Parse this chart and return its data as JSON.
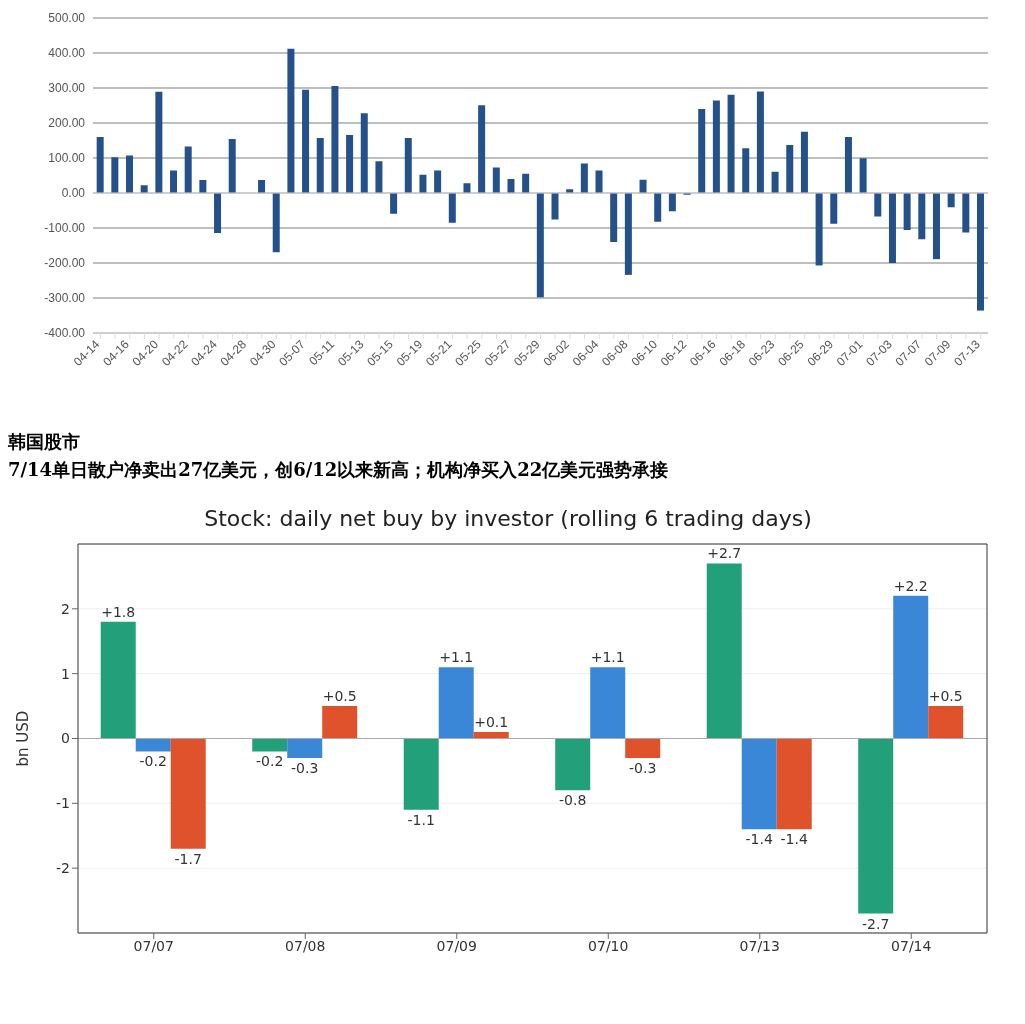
{
  "chart_data": [
    {
      "type": "bar",
      "categories": [
        "04-14",
        null,
        "04-16",
        null,
        "04-20",
        null,
        "04-22",
        null,
        "04-24",
        null,
        "04-28",
        null,
        "04-30",
        null,
        "05-07",
        null,
        "05-11",
        null,
        "05-13",
        null,
        "05-15",
        null,
        "05-19",
        null,
        "05-21",
        null,
        "05-25",
        null,
        "05-27",
        null,
        "05-29",
        null,
        "06-02",
        null,
        "06-04",
        null,
        "06-08",
        null,
        "06-10",
        null,
        "06-12",
        null,
        "06-16",
        null,
        "06-18",
        null,
        "06-23",
        null,
        "06-25",
        null,
        "06-29",
        null,
        "07-01",
        null,
        "07-03",
        null,
        "07-07",
        null,
        "07-09",
        null,
        "07-13"
      ],
      "values": [
        160,
        102,
        107,
        22,
        289,
        64,
        133,
        37,
        -114,
        154,
        0,
        37,
        -169,
        412,
        295,
        157,
        306,
        166,
        228,
        91,
        -59,
        157,
        52,
        64,
        -85,
        28,
        251,
        73,
        40,
        55,
        -298,
        -76,
        11,
        84,
        64,
        -140,
        -234,
        38,
        -82,
        -52,
        -5,
        240,
        264,
        281,
        128,
        290,
        61,
        137,
        175,
        -207,
        -88,
        160,
        99,
        -67,
        -200,
        -106,
        -132,
        -189,
        -41,
        -113,
        -336
      ],
      "color": "#24518a",
      "ylim": [
        -400,
        500
      ],
      "yticks": [
        {
          "value": -400,
          "label": "-400.00"
        },
        {
          "value": -300,
          "label": "-300.00"
        },
        {
          "value": -200,
          "label": "-200.00"
        },
        {
          "value": -100,
          "label": "-100.00"
        },
        {
          "value": 0,
          "label": "0.00"
        },
        {
          "value": 100,
          "label": "100.00"
        },
        {
          "value": 200,
          "label": "200.00"
        },
        {
          "value": 300,
          "label": "300.00"
        },
        {
          "value": 400,
          "label": "400.00"
        },
        {
          "value": 500,
          "label": "500.00"
        }
      ],
      "grid": "y"
    },
    {
      "type": "other",
      "title": "韩国股市",
      "subtitle": "7/14单日散户净卖出27亿美元，创6/12以来新高；机构净买入22亿美元强势承接"
    },
    {
      "type": "bar",
      "title": "Stock: daily net buy by investor (rolling 6 trading days)",
      "ylabel": "bn USD",
      "categories": [
        "07/07",
        "07/08",
        "07/09",
        "07/10",
        "07/13",
        "07/14"
      ],
      "series": [
        {
          "color": "#22a07a",
          "values": [
            1.8,
            -0.2,
            -1.1,
            -0.8,
            2.7,
            -2.7
          ],
          "value_labels": [
            "+1.8",
            "-0.2",
            "-1.1",
            "-0.8",
            "+2.7",
            "-2.7"
          ]
        },
        {
          "color": "#3a87d8",
          "values": [
            -0.2,
            -0.3,
            1.1,
            1.1,
            -1.4,
            2.2
          ],
          "value_labels": [
            "-0.2",
            "-0.3",
            "+1.1",
            "+1.1",
            "-1.4",
            "+2.2"
          ]
        },
        {
          "color": "#e0522c",
          "values": [
            -1.7,
            0.5,
            0.1,
            -0.3,
            -1.4,
            0.5
          ],
          "value_labels": [
            "-1.7",
            "+0.5",
            "+0.1",
            "-0.3",
            "-1.4",
            "+0.5"
          ]
        }
      ],
      "ylim": [
        -3,
        3
      ],
      "yticks": [
        -2,
        -1,
        0,
        1,
        2
      ],
      "ref_lines": [
        {
          "axis": "y",
          "value": 0,
          "color": "#aaaaaa"
        }
      ],
      "grid": "y"
    }
  ]
}
